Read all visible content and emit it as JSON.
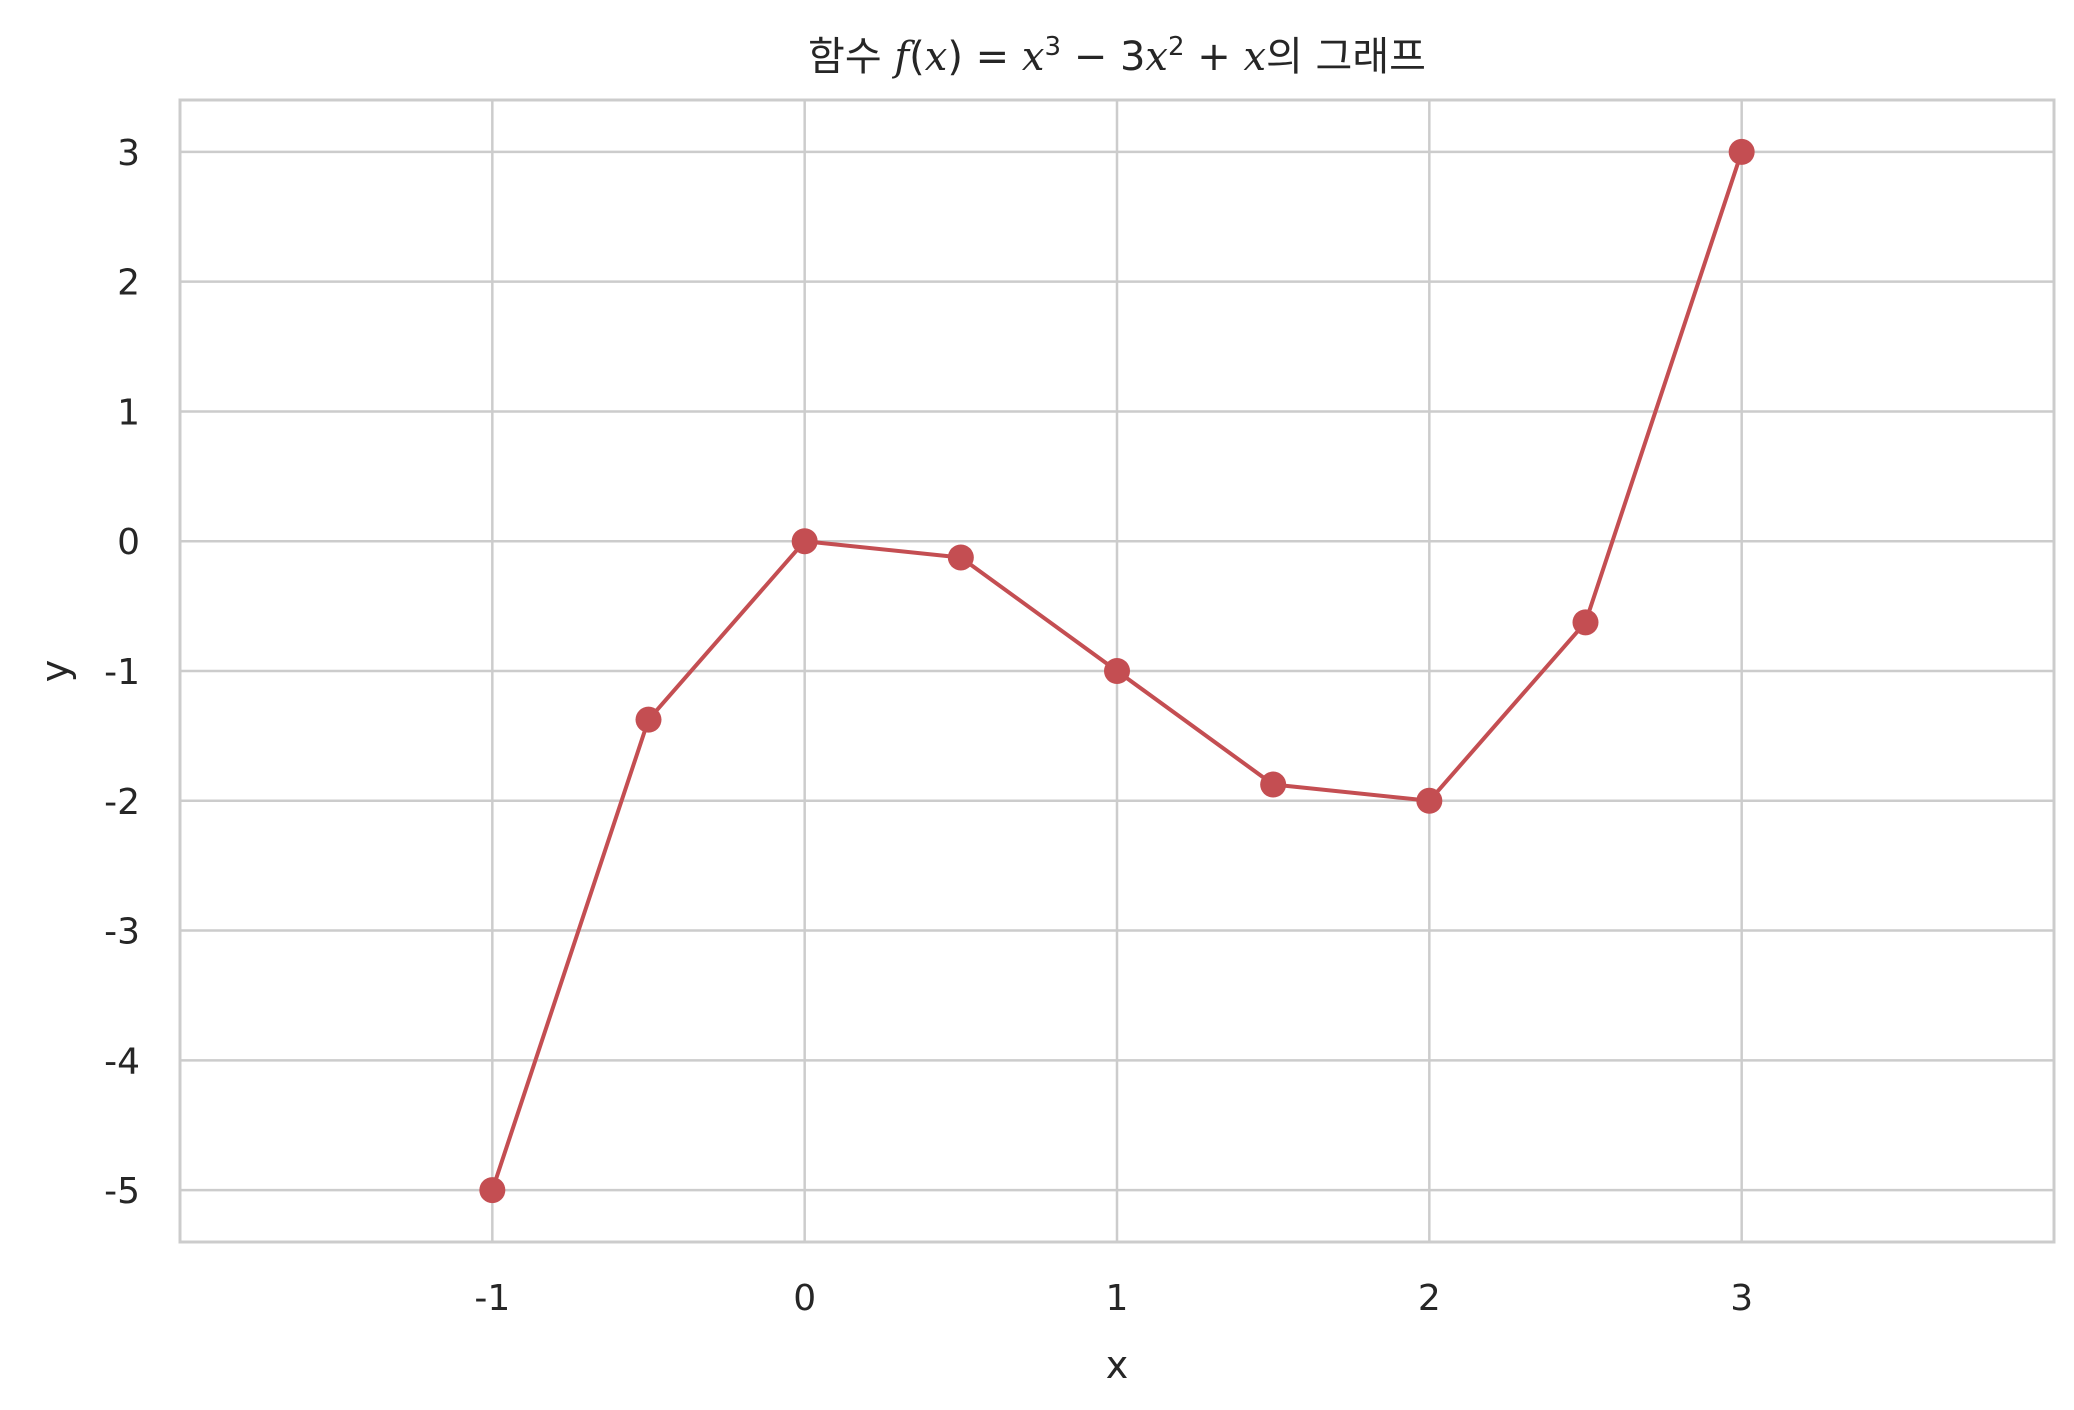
{
  "chart_data": {
    "type": "line",
    "title": "함수 f(x) = x³ − 3x² + x의 그래프",
    "title_parts": {
      "prefix": "함수 ",
      "fname": "f",
      "open_paren": "(",
      "arg": "x",
      "close_eq": ") = ",
      "x1": "x",
      "exp1": "3",
      "minus": " − 3",
      "x2": "x",
      "exp2": "2",
      "plus": " + ",
      "x3": "x",
      "suffix": "의 그래프"
    },
    "xlabel": "x",
    "ylabel": "y",
    "xlim": [
      -2.0,
      4.0
    ],
    "ylim": [
      -5.4,
      3.4
    ],
    "xticks": [
      -1,
      0,
      1,
      2,
      3
    ],
    "xtick_labels": [
      "-1",
      "0",
      "1",
      "2",
      "3"
    ],
    "yticks": [
      3,
      2,
      1,
      0,
      -1,
      -2,
      -3,
      -4,
      -5
    ],
    "ytick_labels": [
      "3",
      "2",
      "1",
      "0",
      "-1",
      "-2",
      "-3",
      "-4",
      "-5"
    ],
    "grid": true,
    "series": [
      {
        "color": "#c44e52",
        "x": [
          -1,
          -0.5,
          0,
          0.5,
          1,
          1.5,
          2,
          2.5,
          3
        ],
        "y": [
          -5,
          -1.375,
          0,
          -0.125,
          -1,
          -1.875,
          -2,
          -0.625,
          3
        ]
      }
    ]
  }
}
